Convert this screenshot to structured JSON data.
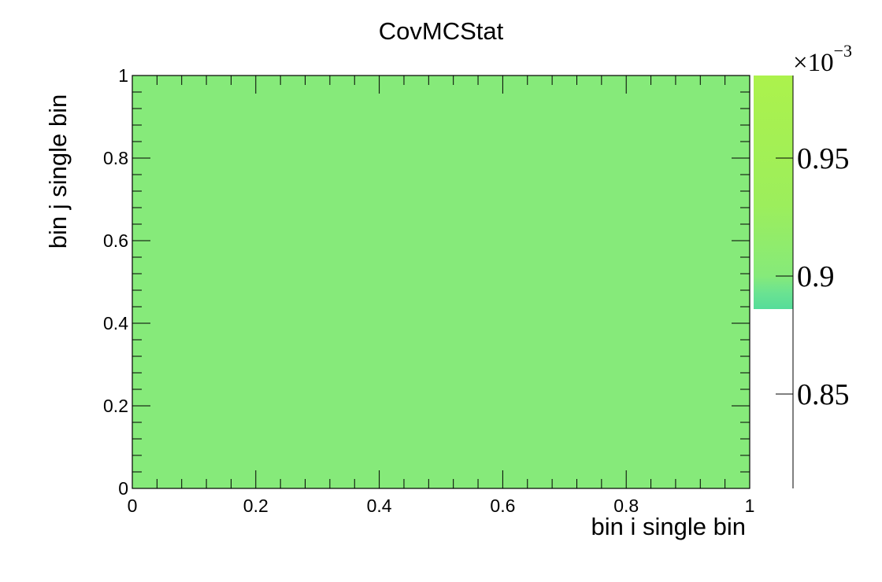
{
  "chart_data": {
    "type": "heatmap",
    "title": "CovMCStat",
    "xlabel": "bin i single bin",
    "ylabel": "bin j single bin",
    "xlim": [
      0,
      1
    ],
    "ylim": [
      0,
      1
    ],
    "x_ticks": [
      "0",
      "0.2",
      "0.4",
      "0.6",
      "0.8",
      "1"
    ],
    "y_ticks": [
      "0",
      "0.2",
      "0.4",
      "0.6",
      "0.8",
      "1"
    ],
    "cells": [
      {
        "x": [
          0,
          1
        ],
        "y": [
          0,
          1
        ],
        "value": 0.000905
      }
    ],
    "colorbar": {
      "scale_label": "×10",
      "scale_exponent": "−3",
      "range": [
        0.00081,
        0.000985
      ],
      "filled_range": [
        0.000886,
        0.000985
      ],
      "ticks": [
        "0.85",
        "0.9",
        "0.95"
      ],
      "tick_values": [
        0.00085,
        0.0009,
        0.00095
      ],
      "cell_color": "#86EA7A",
      "palette": [
        {
          "value": 0.000886,
          "color": "#55DC9A"
        },
        {
          "value": 0.000893,
          "color": "#6BE391"
        },
        {
          "value": 0.0009,
          "color": "#86EA7A"
        },
        {
          "value": 0.00093,
          "color": "#9CEE5C"
        },
        {
          "value": 0.000985,
          "color": "#ACF24C"
        }
      ]
    }
  }
}
